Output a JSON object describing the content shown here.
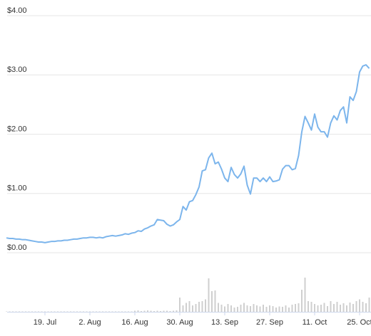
{
  "chart_data": {
    "type": "line",
    "x": [
      "7. Jul",
      "8. Jul",
      "9. Jul",
      "10. Jul",
      "11. Jul",
      "12. Jul",
      "13. Jul",
      "14. Jul",
      "15. Jul",
      "16. Jul",
      "17. Jul",
      "18. Jul",
      "19. Jul",
      "20. Jul",
      "21. Jul",
      "22. Jul",
      "23. Jul",
      "24. Jul",
      "25. Jul",
      "26. Jul",
      "27. Jul",
      "28. Jul",
      "29. Jul",
      "30. Jul",
      "31. Jul",
      "1. Aug",
      "2. Aug",
      "3. Aug",
      "4. Aug",
      "5. Aug",
      "6. Aug",
      "7. Aug",
      "8. Aug",
      "9. Aug",
      "10. Aug",
      "11. Aug",
      "12. Aug",
      "13. Aug",
      "14. Aug",
      "15. Aug",
      "16. Aug",
      "17. Aug",
      "18. Aug",
      "19. Aug",
      "20. Aug",
      "21. Aug",
      "22. Aug",
      "23. Aug",
      "24. Aug",
      "25. Aug",
      "26. Aug",
      "27. Aug",
      "28. Aug",
      "29. Aug",
      "30. Aug",
      "31. Aug",
      "1. Sep",
      "2. Sep",
      "3. Sep",
      "4. Sep",
      "5. Sep",
      "6. Sep",
      "7. Sep",
      "8. Sep",
      "9. Sep",
      "10. Sep",
      "11. Sep",
      "12. Sep",
      "13. Sep",
      "14. Sep",
      "15. Sep",
      "16. Sep",
      "17. Sep",
      "18. Sep",
      "19. Sep",
      "20. Sep",
      "21. Sep",
      "22. Sep",
      "23. Sep",
      "24. Sep",
      "25. Sep",
      "26. Sep",
      "27. Sep",
      "28. Sep",
      "29. Sep",
      "30. Sep",
      "1. Oct",
      "2. Oct",
      "3. Oct",
      "4. Oct",
      "5. Oct",
      "6. Oct",
      "7. Oct",
      "8. Oct",
      "9. Oct",
      "10. Oct",
      "11. Oct",
      "12. Oct",
      "13. Oct",
      "14. Oct",
      "15. Oct",
      "16. Oct",
      "17. Oct",
      "18. Oct",
      "19. Oct",
      "20. Oct",
      "21. Oct",
      "22. Oct",
      "23. Oct",
      "24. Oct",
      "25. Oct",
      "26. Oct",
      "27. Oct",
      "28. Oct"
    ],
    "series": [
      {
        "color": "#7cb5ec",
        "values": [
          0.25,
          0.24,
          0.24,
          0.23,
          0.23,
          0.22,
          0.22,
          0.21,
          0.2,
          0.19,
          0.18,
          0.18,
          0.17,
          0.18,
          0.19,
          0.19,
          0.2,
          0.2,
          0.21,
          0.21,
          0.22,
          0.23,
          0.23,
          0.24,
          0.25,
          0.25,
          0.26,
          0.26,
          0.25,
          0.26,
          0.25,
          0.27,
          0.28,
          0.29,
          0.28,
          0.29,
          0.3,
          0.32,
          0.31,
          0.33,
          0.34,
          0.37,
          0.36,
          0.4,
          0.42,
          0.45,
          0.47,
          0.56,
          0.55,
          0.54,
          0.48,
          0.45,
          0.47,
          0.52,
          0.56,
          0.78,
          0.72,
          0.86,
          0.88,
          0.98,
          1.11,
          1.38,
          1.4,
          1.6,
          1.68,
          1.5,
          1.53,
          1.41,
          1.26,
          1.2,
          1.44,
          1.32,
          1.26,
          1.33,
          1.46,
          1.14,
          0.99,
          1.26,
          1.26,
          1.2,
          1.26,
          1.2,
          1.28,
          1.2,
          1.21,
          1.23,
          1.41,
          1.47,
          1.47,
          1.4,
          1.42,
          1.64,
          2.04,
          2.3,
          2.19,
          2.07,
          2.34,
          2.12,
          2.04,
          2.04,
          1.95,
          2.19,
          2.31,
          2.24,
          2.4,
          2.46,
          2.19,
          2.63,
          2.57,
          2.72,
          3.05,
          3.15,
          3.17,
          3.11
        ]
      },
      {
        "type": "bar",
        "axis": "y2",
        "color": "#cfcfcf",
        "values": [
          1,
          1,
          1,
          1,
          1,
          1,
          1,
          1,
          1,
          1,
          1,
          1,
          1,
          1,
          1,
          1,
          1,
          1,
          1,
          1,
          1,
          1,
          1,
          1,
          1,
          1,
          1,
          1,
          1,
          1,
          1,
          1,
          1,
          1,
          1,
          1,
          1,
          1,
          1,
          1,
          3,
          4,
          2,
          3,
          4,
          3,
          2,
          3,
          2,
          3,
          3,
          2,
          3,
          4,
          40,
          18,
          25,
          30,
          18,
          22,
          28,
          30,
          35,
          94,
          58,
          60,
          25,
          20,
          15,
          22,
          18,
          12,
          14,
          20,
          25,
          18,
          16,
          22,
          18,
          15,
          20,
          14,
          18,
          16,
          12,
          15,
          14,
          18,
          12,
          20,
          22,
          24,
          62,
          96,
          30,
          28,
          22,
          18,
          20,
          25,
          16,
          30,
          22,
          28,
          20,
          24,
          18,
          26,
          22,
          30,
          35,
          28,
          24,
          40
        ]
      }
    ],
    "ylim": [
      0,
      4
    ],
    "yticks": [
      {
        "value": 0,
        "label": "$0.00"
      },
      {
        "value": 1,
        "label": "$1.00"
      },
      {
        "value": 2,
        "label": "$2.00"
      },
      {
        "value": 3,
        "label": "$3.00"
      },
      {
        "value": 4,
        "label": "$4.00"
      }
    ],
    "y2lim": [
      0,
      100
    ],
    "xticks": [
      "19. Jul",
      "2. Aug",
      "16. Aug",
      "30. Aug",
      "13. Sep",
      "27. Sep",
      "11. Oct",
      "25. Oct"
    ],
    "grid": true
  }
}
